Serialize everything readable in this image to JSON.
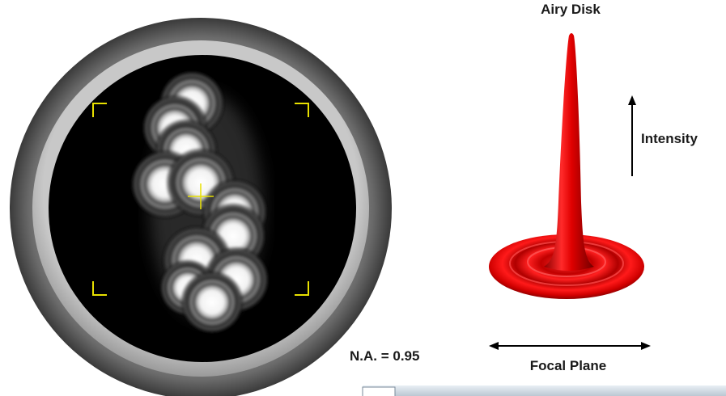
{
  "title": "Airy Disk",
  "labels": {
    "intensity": "Intensity",
    "numerical_aperture": "N.A. = 0.95",
    "focal_plane": "Focal Plane"
  }
}
